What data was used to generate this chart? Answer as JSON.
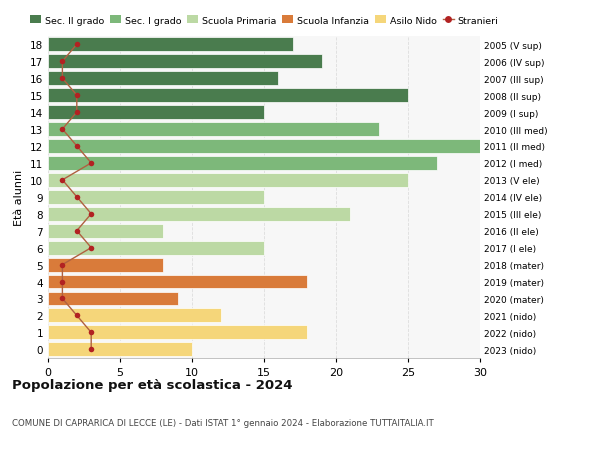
{
  "ages": [
    18,
    17,
    16,
    15,
    14,
    13,
    12,
    11,
    10,
    9,
    8,
    7,
    6,
    5,
    4,
    3,
    2,
    1,
    0
  ],
  "bar_values": [
    17,
    19,
    16,
    25,
    15,
    23,
    30,
    27,
    25,
    15,
    21,
    8,
    15,
    8,
    18,
    9,
    12,
    18,
    10
  ],
  "bar_colors": [
    "#4a7c4e",
    "#4a7c4e",
    "#4a7c4e",
    "#4a7c4e",
    "#4a7c4e",
    "#7db87a",
    "#7db87a",
    "#7db87a",
    "#bcd9a4",
    "#bcd9a4",
    "#bcd9a4",
    "#bcd9a4",
    "#bcd9a4",
    "#d97b3a",
    "#d97b3a",
    "#d97b3a",
    "#f5d67a",
    "#f5d67a",
    "#f5d67a"
  ],
  "stranieri_values": [
    2,
    1,
    1,
    2,
    2,
    1,
    2,
    3,
    1,
    2,
    3,
    2,
    3,
    1,
    1,
    1,
    2,
    3,
    3
  ],
  "right_labels": [
    "2005 (V sup)",
    "2006 (IV sup)",
    "2007 (III sup)",
    "2008 (II sup)",
    "2009 (I sup)",
    "2010 (III med)",
    "2011 (II med)",
    "2012 (I med)",
    "2013 (V ele)",
    "2014 (IV ele)",
    "2015 (III ele)",
    "2016 (II ele)",
    "2017 (I ele)",
    "2018 (mater)",
    "2019 (mater)",
    "2020 (mater)",
    "2021 (nido)",
    "2022 (nido)",
    "2023 (nido)"
  ],
  "legend_labels": [
    "Sec. II grado",
    "Sec. I grado",
    "Scuola Primaria",
    "Scuola Infanzia",
    "Asilo Nido",
    "Stranieri"
  ],
  "legend_colors": [
    "#4a7c4e",
    "#7db87a",
    "#bcd9a4",
    "#d97b3a",
    "#f5d67a",
    "#b22222"
  ],
  "ylabel_left": "Età alunni",
  "title": "Popolazione per età scolastica - 2024",
  "subtitle": "COMUNE DI CAPRARICA DI LECCE (LE) - Dati ISTAT 1° gennaio 2024 - Elaborazione TUTTAITALIA.IT",
  "xlim": [
    0,
    30
  ],
  "xticks": [
    0,
    5,
    10,
    15,
    20,
    25,
    30
  ],
  "stranieri_dot_color": "#b22222",
  "stranieri_line_color": "#b06040",
  "bg_color": "#f7f7f7",
  "grid_color": "#dddddd"
}
